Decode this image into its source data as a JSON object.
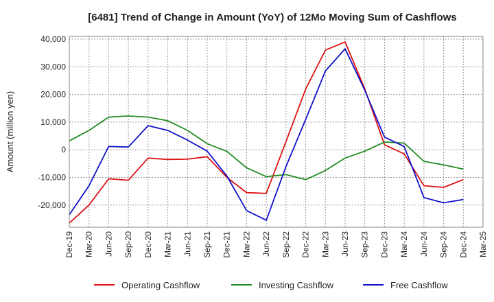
{
  "chart_data": {
    "type": "line",
    "title": "[6481]  Trend of Change in Amount (YoY) of 12Mo Moving Sum of Cashflows",
    "xlabel": "",
    "ylabel": "Amount (million yen)",
    "ylim": [
      -28000,
      41000
    ],
    "yticks": [
      -20000,
      -10000,
      0,
      10000,
      20000,
      30000,
      40000
    ],
    "ytick_labels": [
      "-20,000",
      "-10,000",
      "0",
      "10,000",
      "20,000",
      "30,000",
      "40,000"
    ],
    "categories": [
      "Dec-19",
      "Mar-20",
      "Jun-20",
      "Sep-20",
      "Dec-20",
      "Mar-21",
      "Jun-21",
      "Sep-21",
      "Dec-21",
      "Mar-22",
      "Jun-22",
      "Sep-22",
      "Dec-22",
      "Mar-23",
      "Jun-23",
      "Sep-23",
      "Dec-23",
      "Mar-24",
      "Jun-24",
      "Sep-24",
      "Dec-24",
      "Mar-25"
    ],
    "grid": true,
    "legend_position": "bottom",
    "series": [
      {
        "name": "Operating Cashflow",
        "color": "#dd1111",
        "values": [
          -26500,
          -20000,
          -10500,
          -11000,
          -3000,
          -3500,
          -3400,
          -2500,
          -10000,
          -15500,
          -15800,
          3000,
          22000,
          36000,
          39000,
          22000,
          1800,
          -1500,
          -13000,
          -13600,
          -10800,
          null
        ]
      },
      {
        "name": "Investing Cashflow",
        "color": "#228b22",
        "values": [
          3200,
          7000,
          11800,
          12200,
          11800,
          10500,
          7000,
          2200,
          -600,
          -6500,
          -9700,
          -9000,
          -10800,
          -7500,
          -3000,
          -500,
          2800,
          2400,
          -4200,
          -5500,
          -7000,
          null
        ]
      },
      {
        "name": "Free Cashflow",
        "color": "#1111cc",
        "values": [
          -23500,
          -13000,
          1200,
          1000,
          8700,
          7000,
          3500,
          -500,
          -9500,
          -22000,
          -25500,
          -6000,
          11000,
          28500,
          36500,
          21500,
          4600,
          1200,
          -17300,
          -19200,
          -18000,
          null
        ]
      }
    ]
  }
}
